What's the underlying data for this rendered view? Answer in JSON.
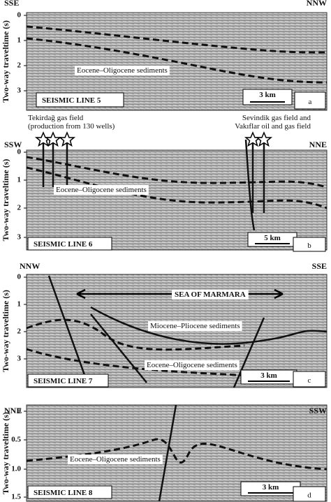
{
  "panels": [
    {
      "left_direction": "SSE",
      "right_direction": "NNW",
      "y_label": "Two-way traveltime (s)",
      "y_ticks": [
        "0",
        "1",
        "2",
        "3"
      ],
      "labels": [
        "Eocene–Oligocene sediments"
      ],
      "line_name": "SEISMIC LINE 5",
      "scale": "3 km",
      "letter": "a"
    },
    {
      "left_direction": "SSW",
      "right_direction": "NNE",
      "y_label": "Two-way traveltime (s)",
      "y_ticks": [
        "0",
        "1",
        "2",
        "3"
      ],
      "annotations": [
        [
          "Tekirdağ gas field",
          "(production from 130 wells)"
        ],
        [
          "Sevindik gas field and",
          "Vakıflar oil and gas field"
        ]
      ],
      "labels": [
        "Eocene–Oligocene sediments"
      ],
      "line_name": "SEISMIC LINE 6",
      "scale": "5 km",
      "letter": "b"
    },
    {
      "left_direction": "NNW",
      "right_direction": "SSE",
      "y_label": "Two-way traveltime (s)",
      "y_ticks": [
        "0",
        "1",
        "2",
        "3"
      ],
      "labels": [
        "SEA OF MARMARA",
        "Miocene–Pliocene sediments",
        "Eocene–Oligocene sediments"
      ],
      "line_name": "SEISMIC LINE 7",
      "scale": "3 km",
      "letter": "c"
    },
    {
      "left_direction": "NNE",
      "right_direction": "SSW",
      "y_label": "Two-way traveltime (s)",
      "y_ticks": [
        "0",
        "0.5",
        "1.0",
        "1.5"
      ],
      "labels": [
        "Eocene–Oligocene sediments"
      ],
      "line_name": "SEISMIC LINE 8",
      "scale": "3 km",
      "letter": "d"
    }
  ]
}
